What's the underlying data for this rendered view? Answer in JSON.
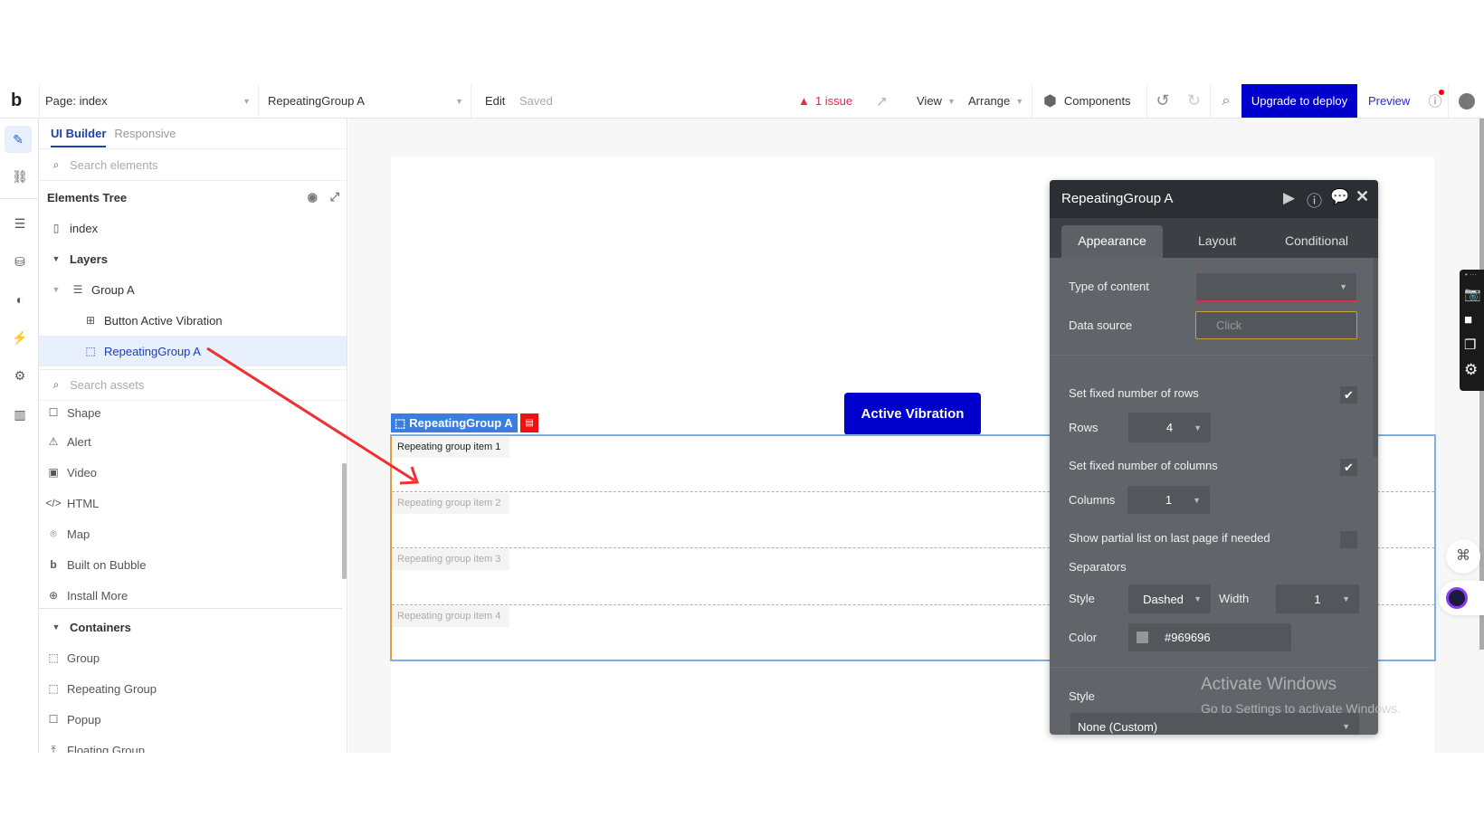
{
  "topbar": {
    "logo": "b",
    "page_selector": "Page: index",
    "element_selector": "RepeatingGroup A",
    "edit": "Edit",
    "saved": "Saved",
    "issues": "1 issue",
    "view": "View",
    "arrange": "Arrange",
    "components": "Components",
    "upgrade": "Upgrade to deploy",
    "preview": "Preview"
  },
  "sidebar": {
    "tabs": [
      "UI Builder",
      "Responsive"
    ],
    "search_elements_placeholder": "Search elements",
    "tree_title": "Elements Tree",
    "tree": [
      {
        "label": "index",
        "icon": "page-icon"
      },
      {
        "label": "Layers",
        "icon": "caret-down-icon"
      },
      {
        "label": "Group A",
        "icon": "group-icon"
      },
      {
        "label": "Button Active Vibration",
        "icon": "button-icon"
      },
      {
        "label": "RepeatingGroup A",
        "icon": "repeating-group-icon",
        "selected": true
      }
    ],
    "search_assets_placeholder": "Search assets",
    "assets": [
      {
        "label": "Shape",
        "icon": "square-icon"
      },
      {
        "label": "Alert",
        "icon": "alert-icon"
      },
      {
        "label": "Video",
        "icon": "video-icon"
      },
      {
        "label": "HTML",
        "icon": "code-icon"
      },
      {
        "label": "Map",
        "icon": "map-pin-icon"
      },
      {
        "label": "Built on Bubble",
        "icon": "bubble-logo-icon"
      },
      {
        "label": "Install More",
        "icon": "plus-circle-icon"
      }
    ],
    "containers_title": "Containers",
    "containers": [
      {
        "label": "Group",
        "icon": "group-icon"
      },
      {
        "label": "Repeating Group",
        "icon": "repeating-group-icon"
      },
      {
        "label": "Popup",
        "icon": "popup-icon"
      },
      {
        "label": "Floating Group",
        "icon": "floating-group-icon"
      }
    ]
  },
  "canvas": {
    "rg_tag": "RepeatingGroup A",
    "button": "Active Vibration",
    "items": [
      "Repeating group item 1",
      "Repeating group item 2",
      "Repeating group item 3",
      "Repeating group item 4"
    ]
  },
  "panel": {
    "title": "RepeatingGroup A",
    "tabs": [
      "Appearance",
      "Layout",
      "Conditional"
    ],
    "type_of_content_label": "Type of content",
    "type_of_content_value": "",
    "data_source_label": "Data source",
    "data_source_placeholder": "Click",
    "fixed_rows_label": "Set fixed number of rows",
    "fixed_rows_checked": true,
    "rows_label": "Rows",
    "rows_value": "4",
    "fixed_cols_label": "Set fixed number of columns",
    "fixed_cols_checked": true,
    "columns_label": "Columns",
    "columns_value": "1",
    "partial_label": "Show partial list on last page if needed",
    "partial_checked": false,
    "separators_label": "Separators",
    "sep_style_label": "Style",
    "sep_style_value": "Dashed",
    "sep_width_label": "Width",
    "sep_width_value": "1",
    "sep_color_label": "Color",
    "sep_color_value": "#969696",
    "style_label": "Style",
    "style_value": "None (Custom)"
  },
  "watermark": {
    "line1": "Activate Windows",
    "line2": "Go to Settings to activate Windows."
  },
  "colors": {
    "accent": "#0000cc",
    "error": "#e8294a",
    "selected_bg": "#e8f0fd",
    "panel_bg": "#616569",
    "header_bg": "#2b2f33"
  }
}
